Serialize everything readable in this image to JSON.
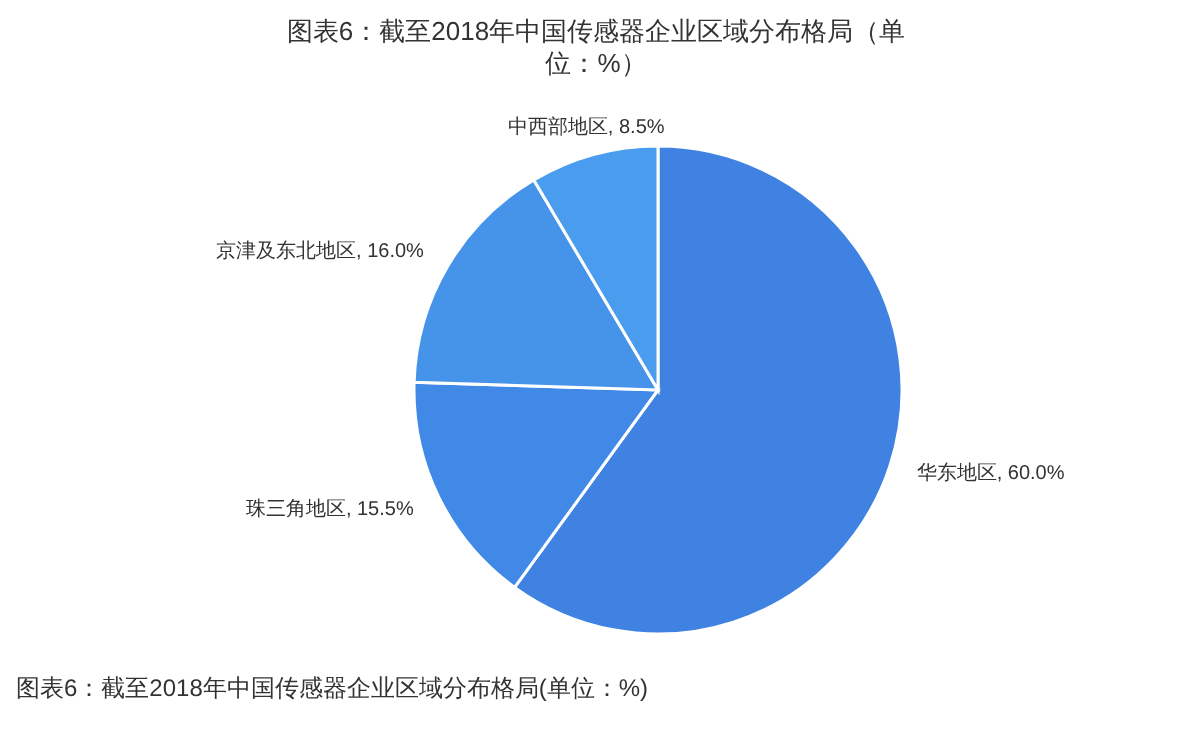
{
  "chart_data": {
    "type": "pie",
    "title": "图表6：截至2018年中国传感器企业区域分布格局（单位：%）",
    "categories": [
      "华东地区",
      "珠三角地区",
      "京津及东北地区",
      "中西部地区"
    ],
    "values": [
      60,
      15.5,
      16,
      8.5
    ],
    "value_labels": [
      "60.0%",
      "15.5%",
      "16.0%",
      "8.5%"
    ],
    "colors": [
      "#3f82e2",
      "#4189e6",
      "#4693ea",
      "#4a9cee"
    ],
    "annotations": [
      "图表6：截至2018年中国传感器企业区域分布格局(单位：%)"
    ]
  }
}
